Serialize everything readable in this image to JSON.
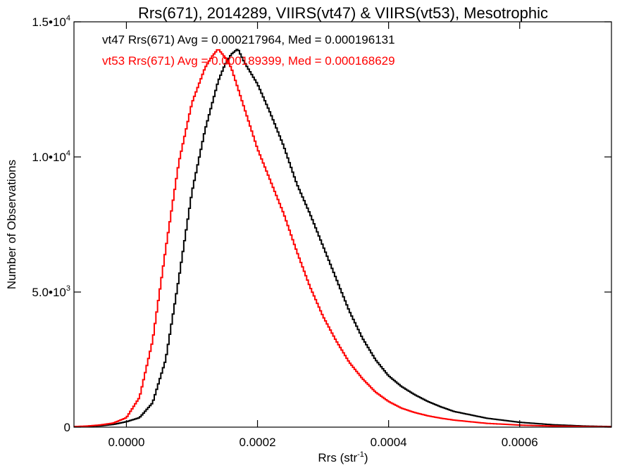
{
  "chart_data": {
    "type": "line",
    "title": "Rrs(671), 2014289, VIIRS(vt47) & VIIRS(vt53), Mesotrophic",
    "xlabel": "Rrs (str",
    "xlabel_sup": "-1",
    "xlabel_end": ")",
    "ylabel": "Number of Observations",
    "xlim": [
      -8e-05,
      0.00074
    ],
    "ylim": [
      0,
      15000
    ],
    "x_ticks": [
      {
        "value": 0.0,
        "label": "0.0000"
      },
      {
        "value": 0.0002,
        "label": "0.0002"
      },
      {
        "value": 0.0004,
        "label": "0.0004"
      },
      {
        "value": 0.0006,
        "label": "0.0006"
      }
    ],
    "y_ticks": [
      {
        "value": 0,
        "label": "0",
        "sup": ""
      },
      {
        "value": 5000,
        "label": "5.0•10",
        "sup": "3"
      },
      {
        "value": 10000,
        "label": "1.0•10",
        "sup": "4"
      },
      {
        "value": 15000,
        "label": "1.5•10",
        "sup": "4"
      }
    ],
    "annotations": [
      {
        "text": "vt47 Rrs(671) Avg = 0.000217964, Med = 0.000196131",
        "color": "#000000"
      },
      {
        "text": "vt53 Rrs(671) Avg = 0.000189399, Med = 0.000168629",
        "color": "#ff0000"
      }
    ],
    "series": [
      {
        "color": "#000000",
        "x": [
          -8e-05,
          -6e-05,
          -4e-05,
          -2e-05,
          0.0,
          2e-05,
          4e-05,
          6e-05,
          8e-05,
          0.0001,
          0.00012,
          0.00014,
          0.00015,
          0.00016,
          0.00017,
          0.00018,
          0.0002,
          0.00022,
          0.00024,
          0.00026,
          0.00028,
          0.0003,
          0.00032,
          0.00034,
          0.00036,
          0.00038,
          0.0004,
          0.00042,
          0.00044,
          0.00046,
          0.00048,
          0.0005,
          0.00055,
          0.0006,
          0.00065,
          0.0007,
          0.00074
        ],
        "values": [
          20,
          30,
          50,
          100,
          200,
          350,
          900,
          2500,
          5500,
          8700,
          11000,
          12800,
          13400,
          13800,
          14000,
          13500,
          12700,
          11600,
          10400,
          9000,
          7900,
          6700,
          5500,
          4300,
          3300,
          2500,
          1900,
          1500,
          1200,
          950,
          750,
          580,
          330,
          180,
          90,
          40,
          20
        ]
      },
      {
        "color": "#ff0000",
        "x": [
          -8e-05,
          -6e-05,
          -4e-05,
          -2e-05,
          0.0,
          2e-05,
          4e-05,
          6e-05,
          8e-05,
          0.0001,
          0.00012,
          0.00013,
          0.00014,
          0.00015,
          0.00016,
          0.00018,
          0.0002,
          0.00022,
          0.00024,
          0.00026,
          0.00028,
          0.0003,
          0.00032,
          0.00034,
          0.00036,
          0.00038,
          0.0004,
          0.00042,
          0.00044,
          0.00046,
          0.00048,
          0.0005,
          0.00055,
          0.0006,
          0.00065,
          0.0007,
          0.00074
        ],
        "values": [
          20,
          40,
          80,
          150,
          350,
          1100,
          3200,
          6600,
          9800,
          12000,
          13300,
          13700,
          14000,
          13700,
          13300,
          11800,
          10300,
          9100,
          7900,
          6500,
          5200,
          4100,
          3200,
          2400,
          1800,
          1300,
          950,
          700,
          540,
          420,
          330,
          260,
          140,
          75,
          40,
          20,
          10
        ]
      }
    ]
  }
}
